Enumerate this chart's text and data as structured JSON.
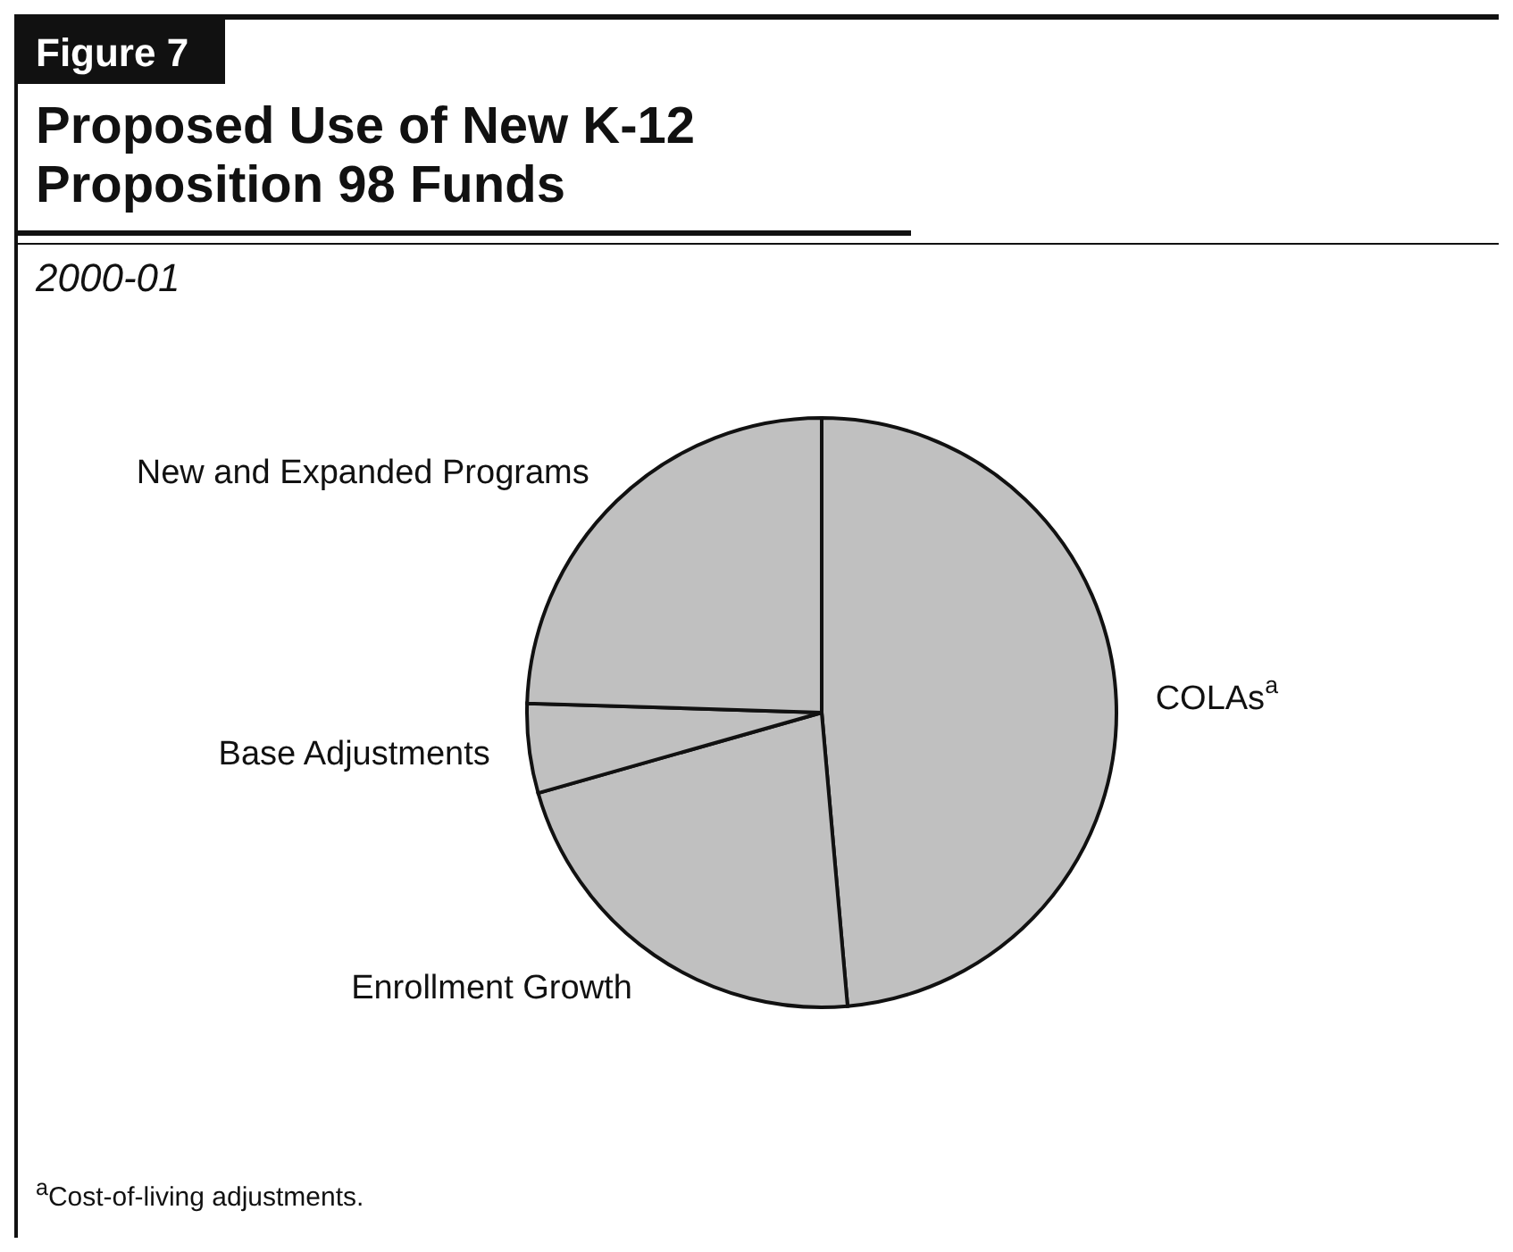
{
  "chart_data": {
    "type": "pie",
    "title": "Proposed Use of New K-12 Proposition 98 Funds",
    "subtitle": "2000-01",
    "categories": [
      "COLAs$^{a}$",
      "Enrollment Growth",
      "Base Adjustments",
      "New and Expanded Programs"
    ],
    "values": [
      48.6,
      22,
      4.9,
      24.5
    ],
    "colors": [
      "#c0c0c0",
      "#c0c0c0",
      "#c0c0c0",
      "#c0c0c0"
    ],
    "annotations": [
      "Figure 7",
      "$^{a}$Cost-of-living adjustments."
    ]
  }
}
